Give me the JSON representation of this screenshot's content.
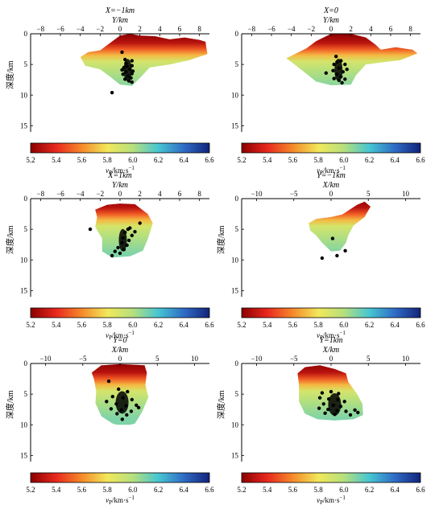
{
  "figure": {
    "colorbar": {
      "label": "v_P/km·s⁻¹",
      "label_main": "v",
      "label_sub": "P",
      "label_rest": "/km·s",
      "label_sup": "−1",
      "min": 5.2,
      "max": 6.6,
      "ticks": [
        "5.2",
        "5.4",
        "5.6",
        "5.8",
        "6.0",
        "6.2",
        "6.4",
        "6.6"
      ],
      "colors": {
        "c0": "#8b0000",
        "c1": "#e8281e",
        "c2": "#f58a2a",
        "c3": "#f2e85a",
        "c4": "#b6e07c",
        "c5": "#46c6d2",
        "c6": "#2f6cc6",
        "c7": "#12237a"
      }
    }
  },
  "chart_data": [
    {
      "type": "heatmap",
      "title_line1": "X=−1km",
      "title_line2": "Y/km",
      "xlabel": "Y/km",
      "ylabel": "深度/km",
      "xlim": [
        -9,
        9
      ],
      "ylim": [
        0,
        16
      ],
      "xticks": [
        "−8",
        "−6",
        "−4",
        "−2",
        "0",
        "2",
        "4",
        "6",
        "8"
      ],
      "yticks": [
        "0",
        "5",
        "10",
        "15"
      ],
      "velocity_outline": [
        [
          -4,
          3.8
        ],
        [
          -3.2,
          3
        ],
        [
          -2,
          2.7
        ],
        [
          -1,
          1.5
        ],
        [
          0,
          0.3
        ],
        [
          1,
          0
        ],
        [
          2,
          0.3
        ],
        [
          3.5,
          0.4
        ],
        [
          5,
          0.9
        ],
        [
          6.5,
          0.6
        ],
        [
          8,
          1
        ],
        [
          8.6,
          1.3
        ],
        [
          8.8,
          3.3
        ],
        [
          7,
          4.3
        ],
        [
          5,
          5
        ],
        [
          3,
          5.5
        ],
        [
          2,
          7.2
        ],
        [
          1.2,
          8.5
        ],
        [
          0,
          8.3
        ],
        [
          -1,
          7
        ],
        [
          -2,
          5.8
        ],
        [
          -3.5,
          5.2
        ]
      ],
      "profile": [
        [
          0,
          5.2
        ],
        [
          1.5,
          5.3
        ],
        [
          2.5,
          5.5
        ],
        [
          3.5,
          5.7
        ],
        [
          4.5,
          5.9
        ],
        [
          6,
          6.0
        ],
        [
          9,
          6.1
        ]
      ],
      "events": [
        [
          0.2,
          3
        ],
        [
          0.5,
          4.2
        ],
        [
          0.6,
          4.8
        ],
        [
          1.2,
          4.4
        ],
        [
          1.2,
          5.2
        ],
        [
          0.4,
          5.5
        ],
        [
          1.0,
          5.8
        ],
        [
          0.6,
          6.2
        ],
        [
          1.2,
          6.5
        ],
        [
          0.3,
          6.6
        ],
        [
          0.8,
          6.9
        ],
        [
          1.1,
          7.2
        ],
        [
          0.5,
          7.4
        ],
        [
          0.9,
          7.7
        ],
        [
          0.2,
          5.9
        ],
        [
          1.3,
          6.1
        ],
        [
          0.7,
          5.3
        ],
        [
          1.2,
          7.9
        ],
        [
          -0.8,
          9.6
        ]
      ],
      "events_note": "dense cluster plotted as black dots"
    },
    {
      "type": "heatmap",
      "title_line1": "X=0",
      "title_line2": "Y/km",
      "xlabel": "Y/km",
      "ylabel": "",
      "xlim": [
        -9,
        9
      ],
      "ylim": [
        0,
        16
      ],
      "xticks": [
        "−8",
        "−6",
        "−4",
        "−2",
        "0",
        "2",
        "4",
        "6",
        "8"
      ],
      "yticks": [
        "0",
        "5",
        "10",
        "15"
      ],
      "velocity_outline": [
        [
          -4.5,
          4
        ],
        [
          -3.5,
          3.2
        ],
        [
          -2.5,
          2.4
        ],
        [
          -1.5,
          1.2
        ],
        [
          0,
          0
        ],
        [
          2,
          0
        ],
        [
          3.5,
          0.6
        ],
        [
          4.5,
          1.8
        ],
        [
          5,
          2.6
        ],
        [
          6.5,
          2.2
        ],
        [
          8.2,
          2.6
        ],
        [
          8.7,
          3.2
        ],
        [
          7,
          4.3
        ],
        [
          5,
          4.7
        ],
        [
          3.5,
          5
        ],
        [
          2.5,
          6.8
        ],
        [
          2,
          8.3
        ],
        [
          0,
          8.4
        ],
        [
          -1.5,
          7.8
        ],
        [
          -2.5,
          6.5
        ],
        [
          -3.5,
          5.2
        ]
      ],
      "profile": [
        [
          0,
          5.2
        ],
        [
          1.5,
          5.3
        ],
        [
          2.5,
          5.5
        ],
        [
          3.5,
          5.7
        ],
        [
          4.5,
          5.9
        ],
        [
          6,
          6.0
        ],
        [
          9,
          6.1
        ]
      ],
      "events": [
        [
          0.5,
          3.7
        ],
        [
          1.0,
          4.4
        ],
        [
          0.3,
          5.0
        ],
        [
          1.4,
          5.0
        ],
        [
          0.8,
          5.6
        ],
        [
          0.2,
          6.0
        ],
        [
          1.2,
          6.2
        ],
        [
          0.6,
          6.6
        ],
        [
          1.0,
          7.0
        ],
        [
          0.3,
          7.3
        ],
        [
          0.8,
          7.6
        ],
        [
          1.4,
          7.4
        ],
        [
          -0.5,
          6.4
        ],
        [
          1.6,
          5.8
        ],
        [
          0.6,
          4.6
        ],
        [
          1.1,
          8.0
        ]
      ],
      "events_note": "dense cluster plotted as black dots"
    },
    {
      "type": "heatmap",
      "title_line1": "X=1km",
      "title_line2": "Y/km",
      "xlabel": "Y/km",
      "ylabel": "深度/km",
      "xlim": [
        -9,
        9
      ],
      "ylim": [
        0,
        16
      ],
      "xticks": [
        "−8",
        "−6",
        "−4",
        "−2",
        "0",
        "2",
        "4",
        "6",
        "8"
      ],
      "yticks": [
        "0",
        "5",
        "10",
        "15"
      ],
      "velocity_outline": [
        [
          -2.3,
          3
        ],
        [
          -2.5,
          1.8
        ],
        [
          -1.3,
          1
        ],
        [
          0,
          0.8
        ],
        [
          1.5,
          0.9
        ],
        [
          2.8,
          2.5
        ],
        [
          3.3,
          4
        ],
        [
          2.8,
          6.6
        ],
        [
          2.3,
          8.5
        ],
        [
          1,
          9.4
        ],
        [
          -0.8,
          9.6
        ],
        [
          -1.8,
          8.6
        ],
        [
          -1.8,
          6.5
        ],
        [
          -2.5,
          4.6
        ]
      ],
      "profile": [
        [
          0,
          5.2
        ],
        [
          1.5,
          5.3
        ],
        [
          2.5,
          5.5
        ],
        [
          3.5,
          5.7
        ],
        [
          4.5,
          5.9
        ],
        [
          6,
          6.0
        ],
        [
          9,
          6.1
        ]
      ],
      "events": [
        [
          -3.0,
          5.0
        ],
        [
          2.0,
          4.0
        ],
        [
          1.0,
          4.8
        ],
        [
          0.5,
          5.5
        ],
        [
          1.2,
          6.0
        ],
        [
          0.3,
          6.4
        ],
        [
          0.9,
          6.8
        ],
        [
          0.2,
          7.2
        ],
        [
          0.7,
          7.6
        ],
        [
          -0.2,
          8.0
        ],
        [
          0.4,
          8.3
        ],
        [
          -0.5,
          8.6
        ],
        [
          0.0,
          8.9
        ],
        [
          -0.8,
          9.3
        ],
        [
          1.5,
          5.4
        ],
        [
          0.8,
          5.0
        ]
      ],
      "events_note": "dense cluster plotted as black dots"
    },
    {
      "type": "heatmap",
      "title_line1": "Y=−1km",
      "title_line2": "X/km",
      "xlabel": "X/km",
      "ylabel": "深度/km",
      "xlim": [
        -12,
        12
      ],
      "ylim": [
        0,
        16
      ],
      "xticks": [
        "−10",
        "−5",
        "0",
        "5",
        "10"
      ],
      "yticks": [
        "0",
        "5",
        "10",
        "15"
      ],
      "velocity_outline": [
        [
          -3,
          4
        ],
        [
          -2,
          3.3
        ],
        [
          0,
          3
        ],
        [
          1.5,
          2.6
        ],
        [
          3.5,
          1
        ],
        [
          4.5,
          0.5
        ],
        [
          5.3,
          1.3
        ],
        [
          4.5,
          3
        ],
        [
          3,
          4.4
        ],
        [
          2.3,
          6
        ],
        [
          2,
          7.2
        ],
        [
          1.2,
          8.5
        ],
        [
          0,
          8.6
        ],
        [
          -1.2,
          7.2
        ],
        [
          -2,
          6
        ],
        [
          -2.8,
          5.2
        ]
      ],
      "profile": [
        [
          0,
          5.2
        ],
        [
          1.5,
          5.3
        ],
        [
          2.5,
          5.5
        ],
        [
          3.5,
          5.7
        ],
        [
          4.5,
          5.9
        ],
        [
          6,
          6.0
        ],
        [
          9,
          6.1
        ]
      ],
      "events": [
        [
          0.2,
          6.5
        ],
        [
          -1.2,
          9.7
        ],
        [
          0.8,
          9.3
        ],
        [
          1.9,
          8.5
        ]
      ],
      "events_note": "black dots"
    },
    {
      "type": "heatmap",
      "title_line1": "Y=0",
      "title_line2": "X/km",
      "xlabel": "X/km",
      "ylabel": "深度/km",
      "xlim": [
        -12,
        12
      ],
      "ylim": [
        0,
        16
      ],
      "xticks": [
        "−10",
        "−5",
        "0",
        "5",
        "10"
      ],
      "yticks": [
        "0",
        "5",
        "10",
        "15"
      ],
      "velocity_outline": [
        [
          -3.5,
          2.5
        ],
        [
          -3.8,
          1.5
        ],
        [
          -2.5,
          0.3
        ],
        [
          0,
          0.1
        ],
        [
          3.3,
          0.3
        ],
        [
          3.6,
          1.5
        ],
        [
          3.4,
          3.5
        ],
        [
          3.8,
          5.5
        ],
        [
          3,
          7.8
        ],
        [
          2,
          9.8
        ],
        [
          0.5,
          10.3
        ],
        [
          -1,
          9.8
        ],
        [
          -2.5,
          8.6
        ],
        [
          -3.3,
          6.5
        ],
        [
          -3.2,
          4.5
        ]
      ],
      "profile": [
        [
          0,
          5.2
        ],
        [
          1.5,
          5.3
        ],
        [
          2.5,
          5.5
        ],
        [
          3.5,
          5.7
        ],
        [
          4.5,
          5.9
        ],
        [
          6,
          6.0
        ],
        [
          9,
          6.1
        ]
      ],
      "events": [
        [
          -1.5,
          2.9
        ],
        [
          -0.2,
          4.2
        ],
        [
          1.0,
          4.6
        ],
        [
          -1.0,
          5.4
        ],
        [
          0.4,
          5.6
        ],
        [
          1.6,
          5.9
        ],
        [
          -0.5,
          6.6
        ],
        [
          0.8,
          6.9
        ],
        [
          2.2,
          6.8
        ],
        [
          -1.2,
          7.4
        ],
        [
          0.2,
          7.6
        ],
        [
          1.5,
          7.8
        ],
        [
          -0.4,
          8.2
        ],
        [
          0.9,
          8.4
        ],
        [
          2.5,
          7.2
        ],
        [
          -1.8,
          6.2
        ],
        [
          0.3,
          9.1
        ]
      ],
      "events_note": "dense cluster plotted as black dots"
    },
    {
      "type": "heatmap",
      "title_line1": "Y=1km",
      "title_line2": "X/km",
      "xlabel": "X/km",
      "ylabel": "深度/km",
      "xlim": [
        -12,
        12
      ],
      "ylim": [
        0,
        16
      ],
      "xticks": [
        "−10",
        "−5",
        "0",
        "5",
        "10"
      ],
      "yticks": [
        "0",
        "5",
        "10",
        "15"
      ],
      "velocity_outline": [
        [
          -4.5,
          1.6
        ],
        [
          -3.5,
          0.6
        ],
        [
          -1.5,
          0.3
        ],
        [
          0.5,
          0.9
        ],
        [
          2,
          1.6
        ],
        [
          2.3,
          3
        ],
        [
          3.5,
          5
        ],
        [
          4.2,
          6.6
        ],
        [
          4.3,
          8.4
        ],
        [
          3,
          9.1
        ],
        [
          0.5,
          9.3
        ],
        [
          -1.8,
          9.1
        ],
        [
          -3.5,
          8.2
        ],
        [
          -4.3,
          6.2
        ],
        [
          -4.3,
          3.5
        ]
      ],
      "profile": [
        [
          0,
          5.2
        ],
        [
          1.5,
          5.3
        ],
        [
          2.5,
          5.5
        ],
        [
          3.5,
          5.7
        ],
        [
          4.5,
          5.9
        ],
        [
          6,
          6.0
        ],
        [
          9,
          6.1
        ]
      ],
      "events": [
        [
          -1.2,
          4.8
        ],
        [
          0.0,
          4.6
        ],
        [
          1.0,
          4.9
        ],
        [
          -1.5,
          5.6
        ],
        [
          -0.3,
          5.8
        ],
        [
          0.9,
          5.9
        ],
        [
          1.8,
          6.2
        ],
        [
          -1.0,
          6.6
        ],
        [
          0.3,
          6.8
        ],
        [
          1.3,
          7.0
        ],
        [
          -1.6,
          7.3
        ],
        [
          -0.4,
          7.5
        ],
        [
          0.8,
          7.7
        ],
        [
          2.0,
          7.8
        ],
        [
          3.2,
          7.6
        ],
        [
          3.6,
          8.0
        ],
        [
          -0.8,
          8.1
        ],
        [
          0.5,
          8.3
        ],
        [
          2.6,
          8.4
        ]
      ],
      "events_note": "dense cluster plotted as black dots"
    }
  ]
}
